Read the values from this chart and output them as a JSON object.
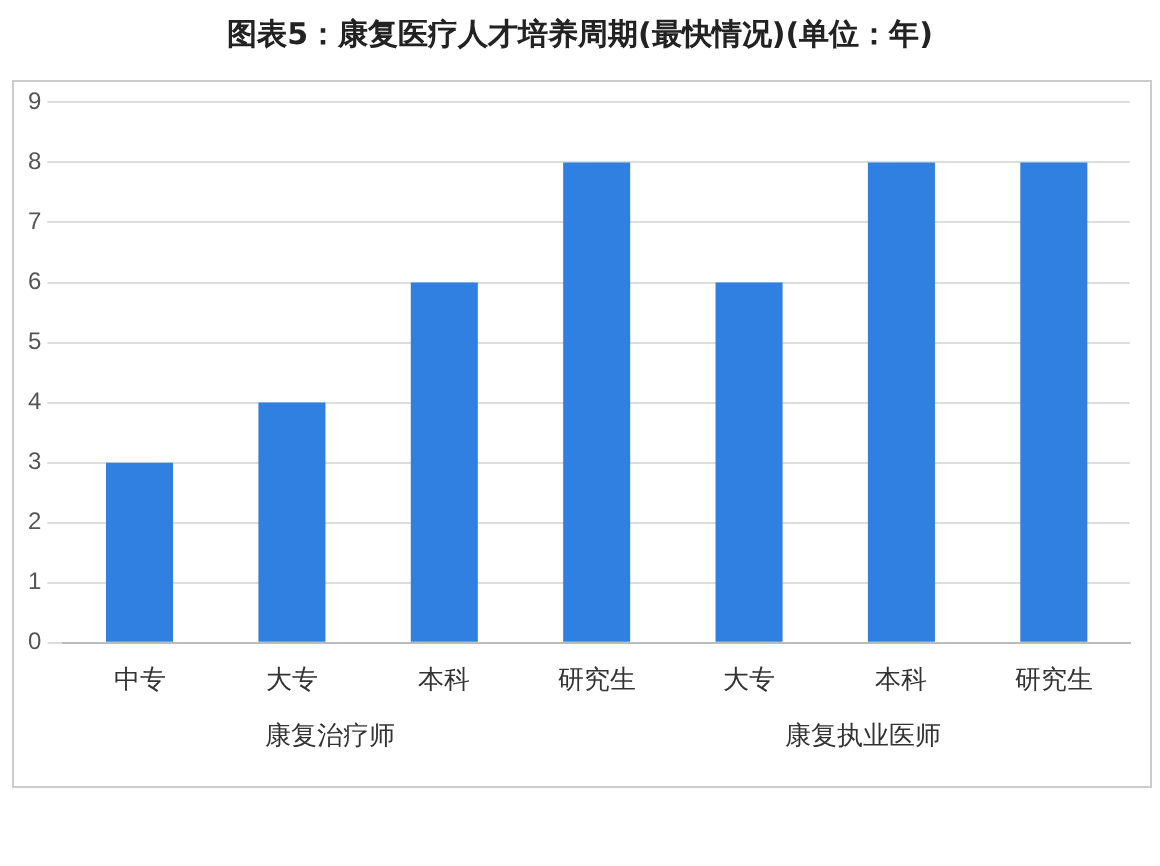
{
  "chart_data": {
    "type": "bar",
    "title": "图表5：康复医疗人才培养周期(最快情况)(单位：年)",
    "categories": [
      "中专",
      "大专",
      "本科",
      "研究生",
      "大专",
      "本科",
      "研究生"
    ],
    "values": [
      3,
      4,
      6,
      8,
      6,
      8,
      8
    ],
    "color": "#2f80e0",
    "ylim": [
      0,
      9
    ],
    "yticks": [
      0,
      1,
      2,
      3,
      4,
      5,
      6,
      7,
      8,
      9
    ],
    "grid": "y",
    "legend": false,
    "annotations": [
      "康复治疗师",
      "康复执业医师"
    ]
  }
}
